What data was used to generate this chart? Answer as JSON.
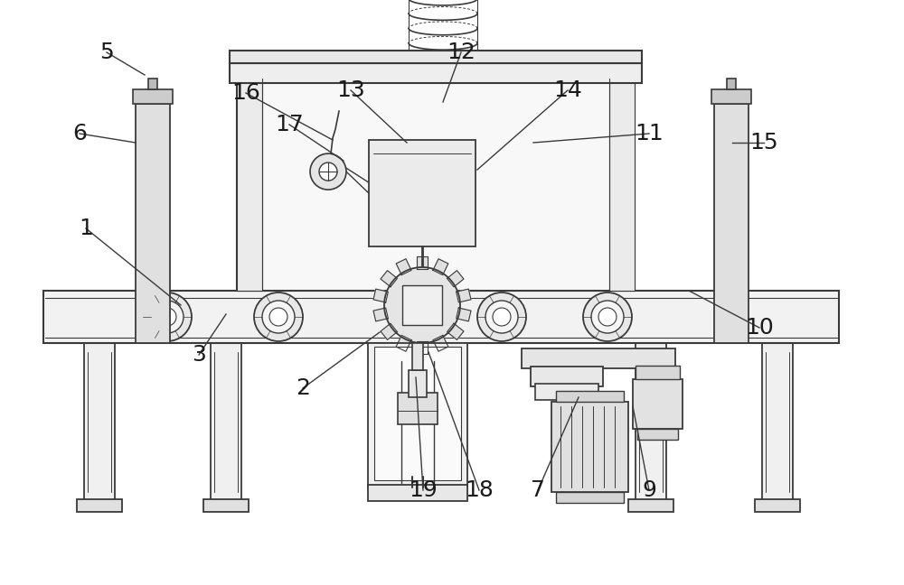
{
  "bg_color": "#ffffff",
  "line_color": "#3a3a3a",
  "label_color": "#1a1a1a",
  "fig_width": 10.0,
  "fig_height": 6.48,
  "dpi": 100
}
